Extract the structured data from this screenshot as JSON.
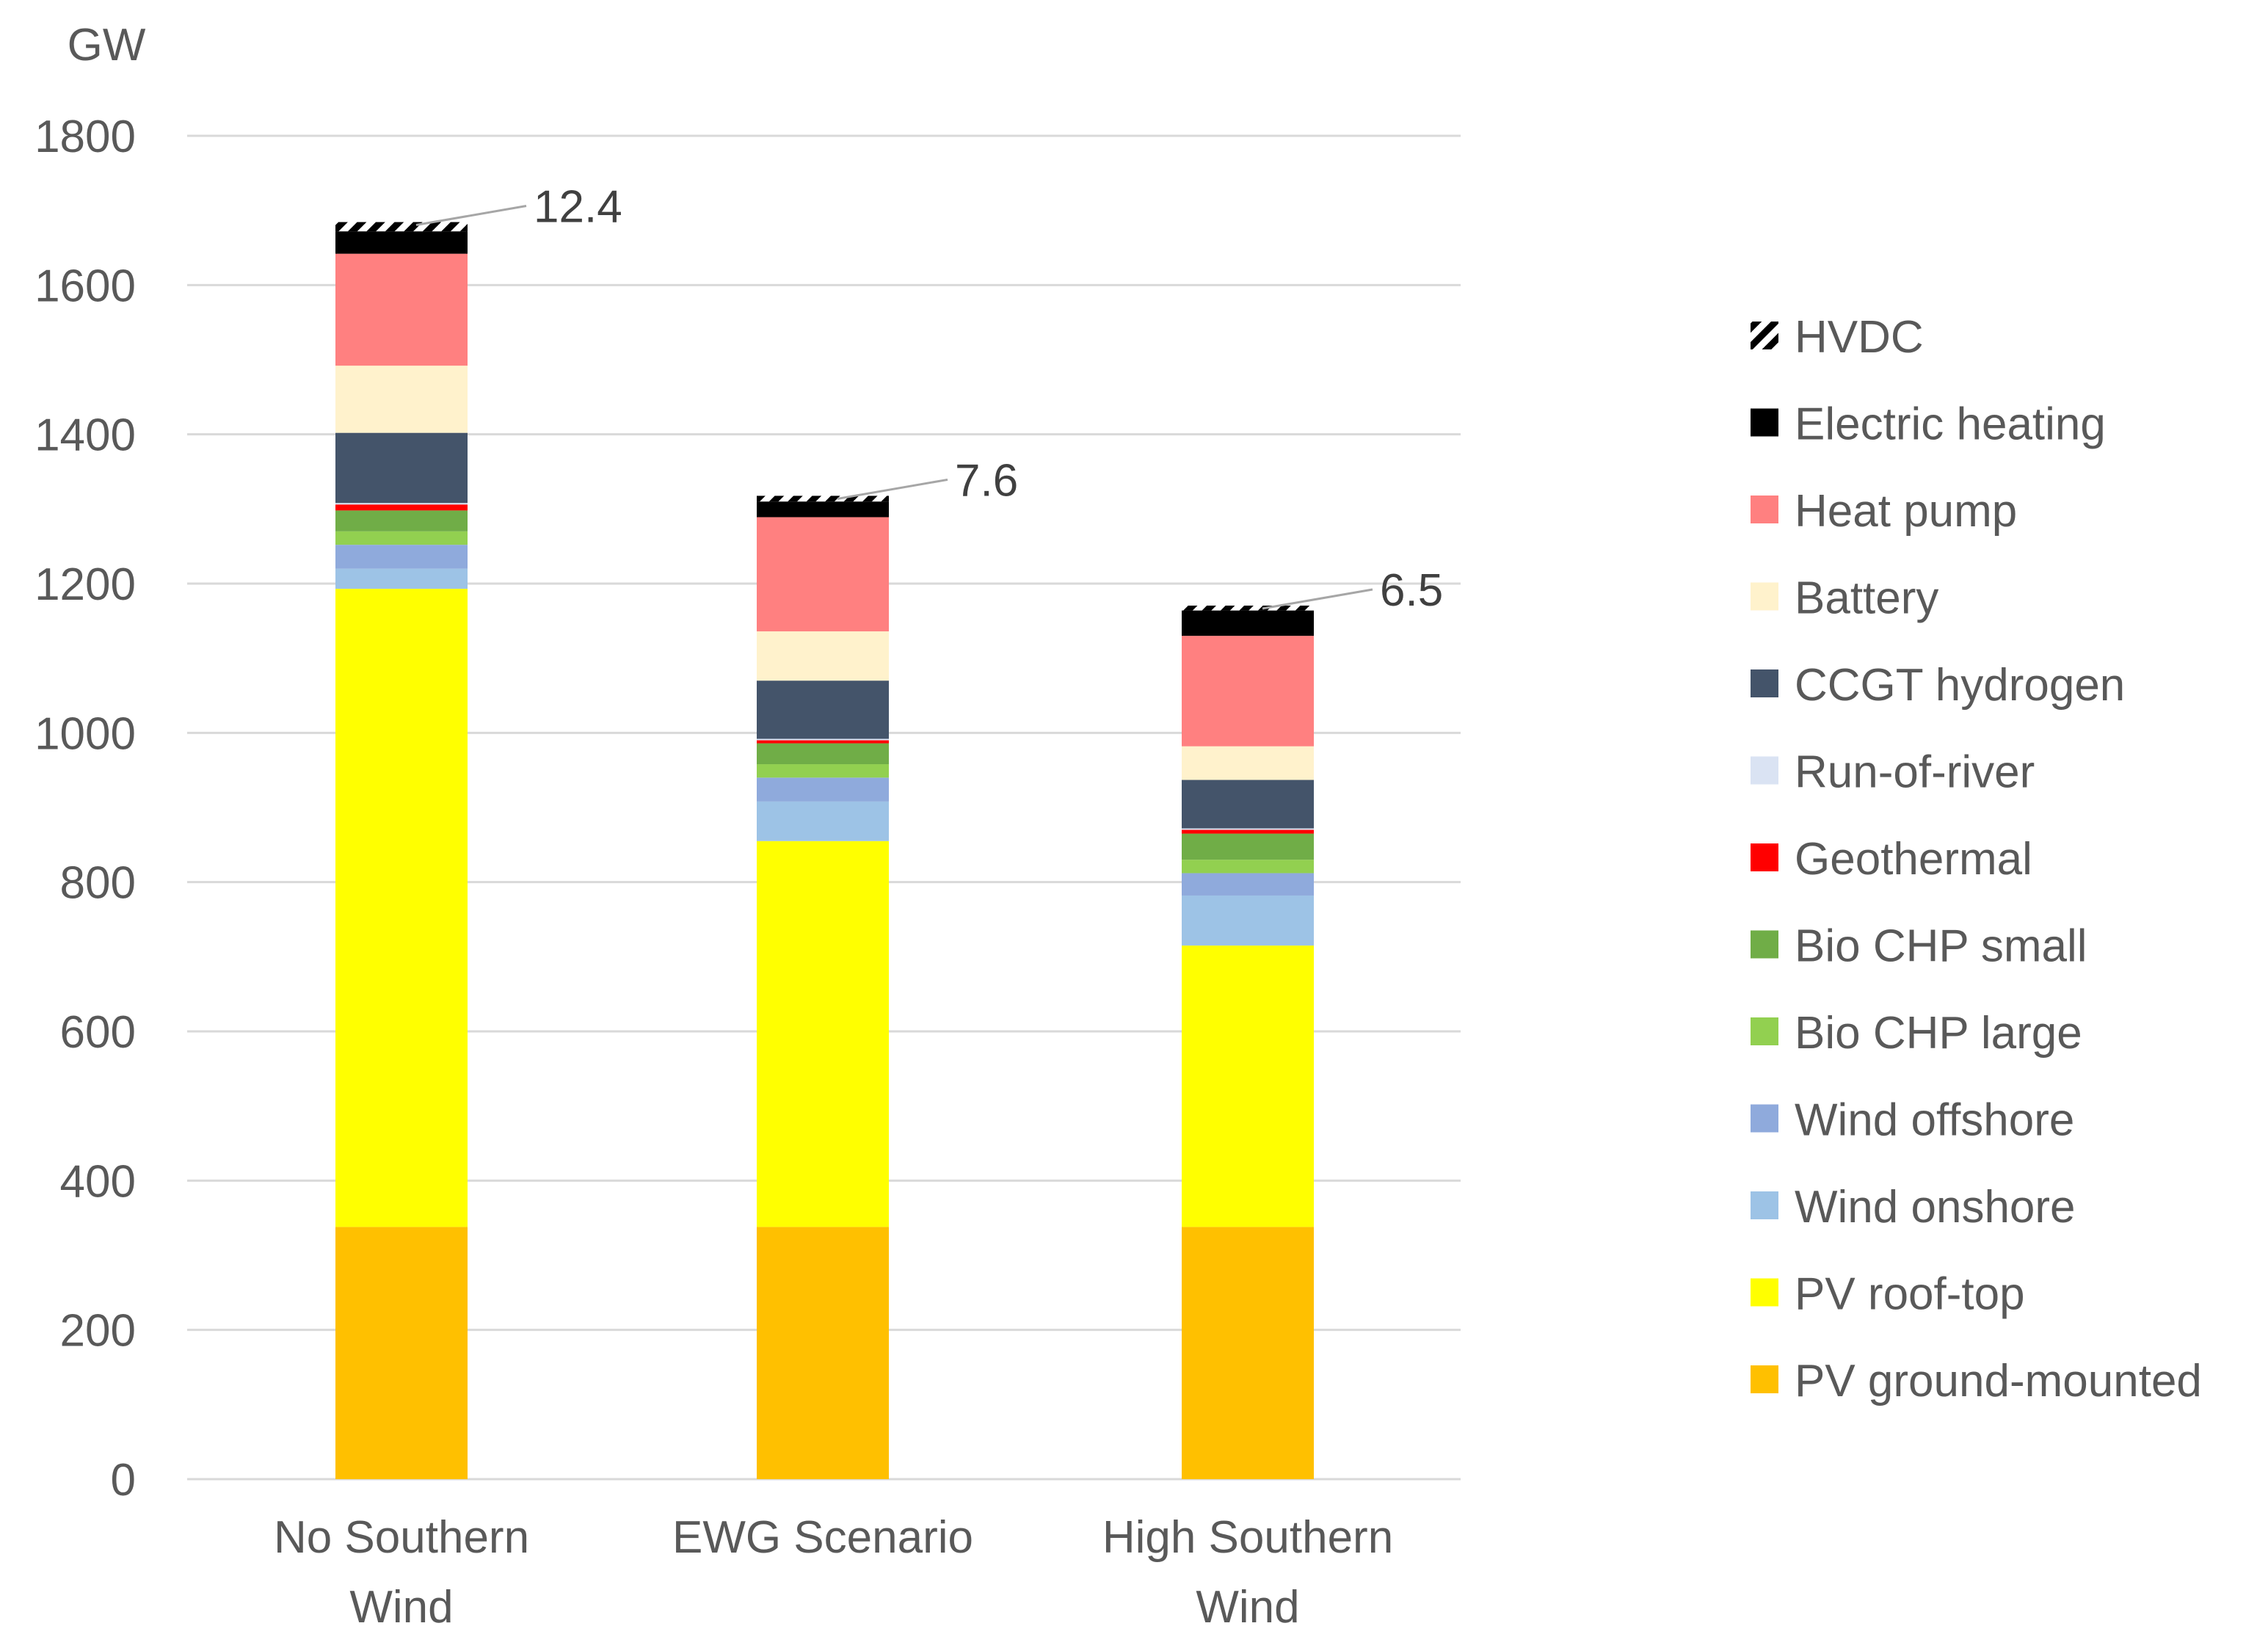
{
  "chart_data": {
    "type": "bar",
    "stacked": true,
    "title": "",
    "ylabel": "GW",
    "xlabel": "",
    "ylim": [
      0,
      1800
    ],
    "yticks": [
      0,
      200,
      400,
      600,
      800,
      1000,
      1200,
      1400,
      1600,
      1800
    ],
    "grid": true,
    "legend_position": "right",
    "categories": [
      [
        "No Southern",
        "Wind"
      ],
      [
        "EWG Scenario"
      ],
      [
        "High Southern",
        "Wind"
      ]
    ],
    "series": [
      {
        "name": "PV ground-mounted",
        "color": "#FFC000",
        "values": [
          338,
          338,
          338
        ]
      },
      {
        "name": "PV roof-top",
        "color": "#FFFF00",
        "values": [
          855,
          517,
          377
        ]
      },
      {
        "name": "Wind onshore",
        "color": "#9DC3E6",
        "values": [
          27,
          53,
          67
        ]
      },
      {
        "name": "Wind offshore",
        "color": "#8FAADC",
        "values": [
          32,
          32,
          30
        ]
      },
      {
        "name": "Bio CHP large",
        "color": "#92D050",
        "values": [
          18,
          18,
          18
        ]
      },
      {
        "name": "Bio CHP small",
        "color": "#70AD47",
        "values": [
          28,
          28,
          35
        ]
      },
      {
        "name": "Geothermal",
        "color": "#FF0000",
        "values": [
          8,
          4,
          5
        ]
      },
      {
        "name": "Run-of-river",
        "color": "#DAE3F3",
        "values": [
          2,
          2,
          2
        ]
      },
      {
        "name": "CCGT hydrogen",
        "color": "#44546A",
        "values": [
          94,
          78,
          65
        ]
      },
      {
        "name": "Battery",
        "color": "#FFF2CC",
        "values": [
          90,
          66,
          45
        ]
      },
      {
        "name": "Heat pump",
        "color": "#FF8080",
        "values": [
          150,
          153,
          148
        ]
      },
      {
        "name": "Electric heating",
        "color": "#000000",
        "values": [
          30,
          21,
          34
        ]
      },
      {
        "name": "HVDC",
        "color": "#000000",
        "pattern": "hatch",
        "values": [
          12.4,
          7.6,
          6.5
        ]
      }
    ],
    "annotations": [
      {
        "category": 0,
        "series": "HVDC",
        "text": "12.4"
      },
      {
        "category": 1,
        "series": "HVDC",
        "text": "7.6"
      },
      {
        "category": 2,
        "series": "HVDC",
        "text": "6.5"
      }
    ]
  }
}
